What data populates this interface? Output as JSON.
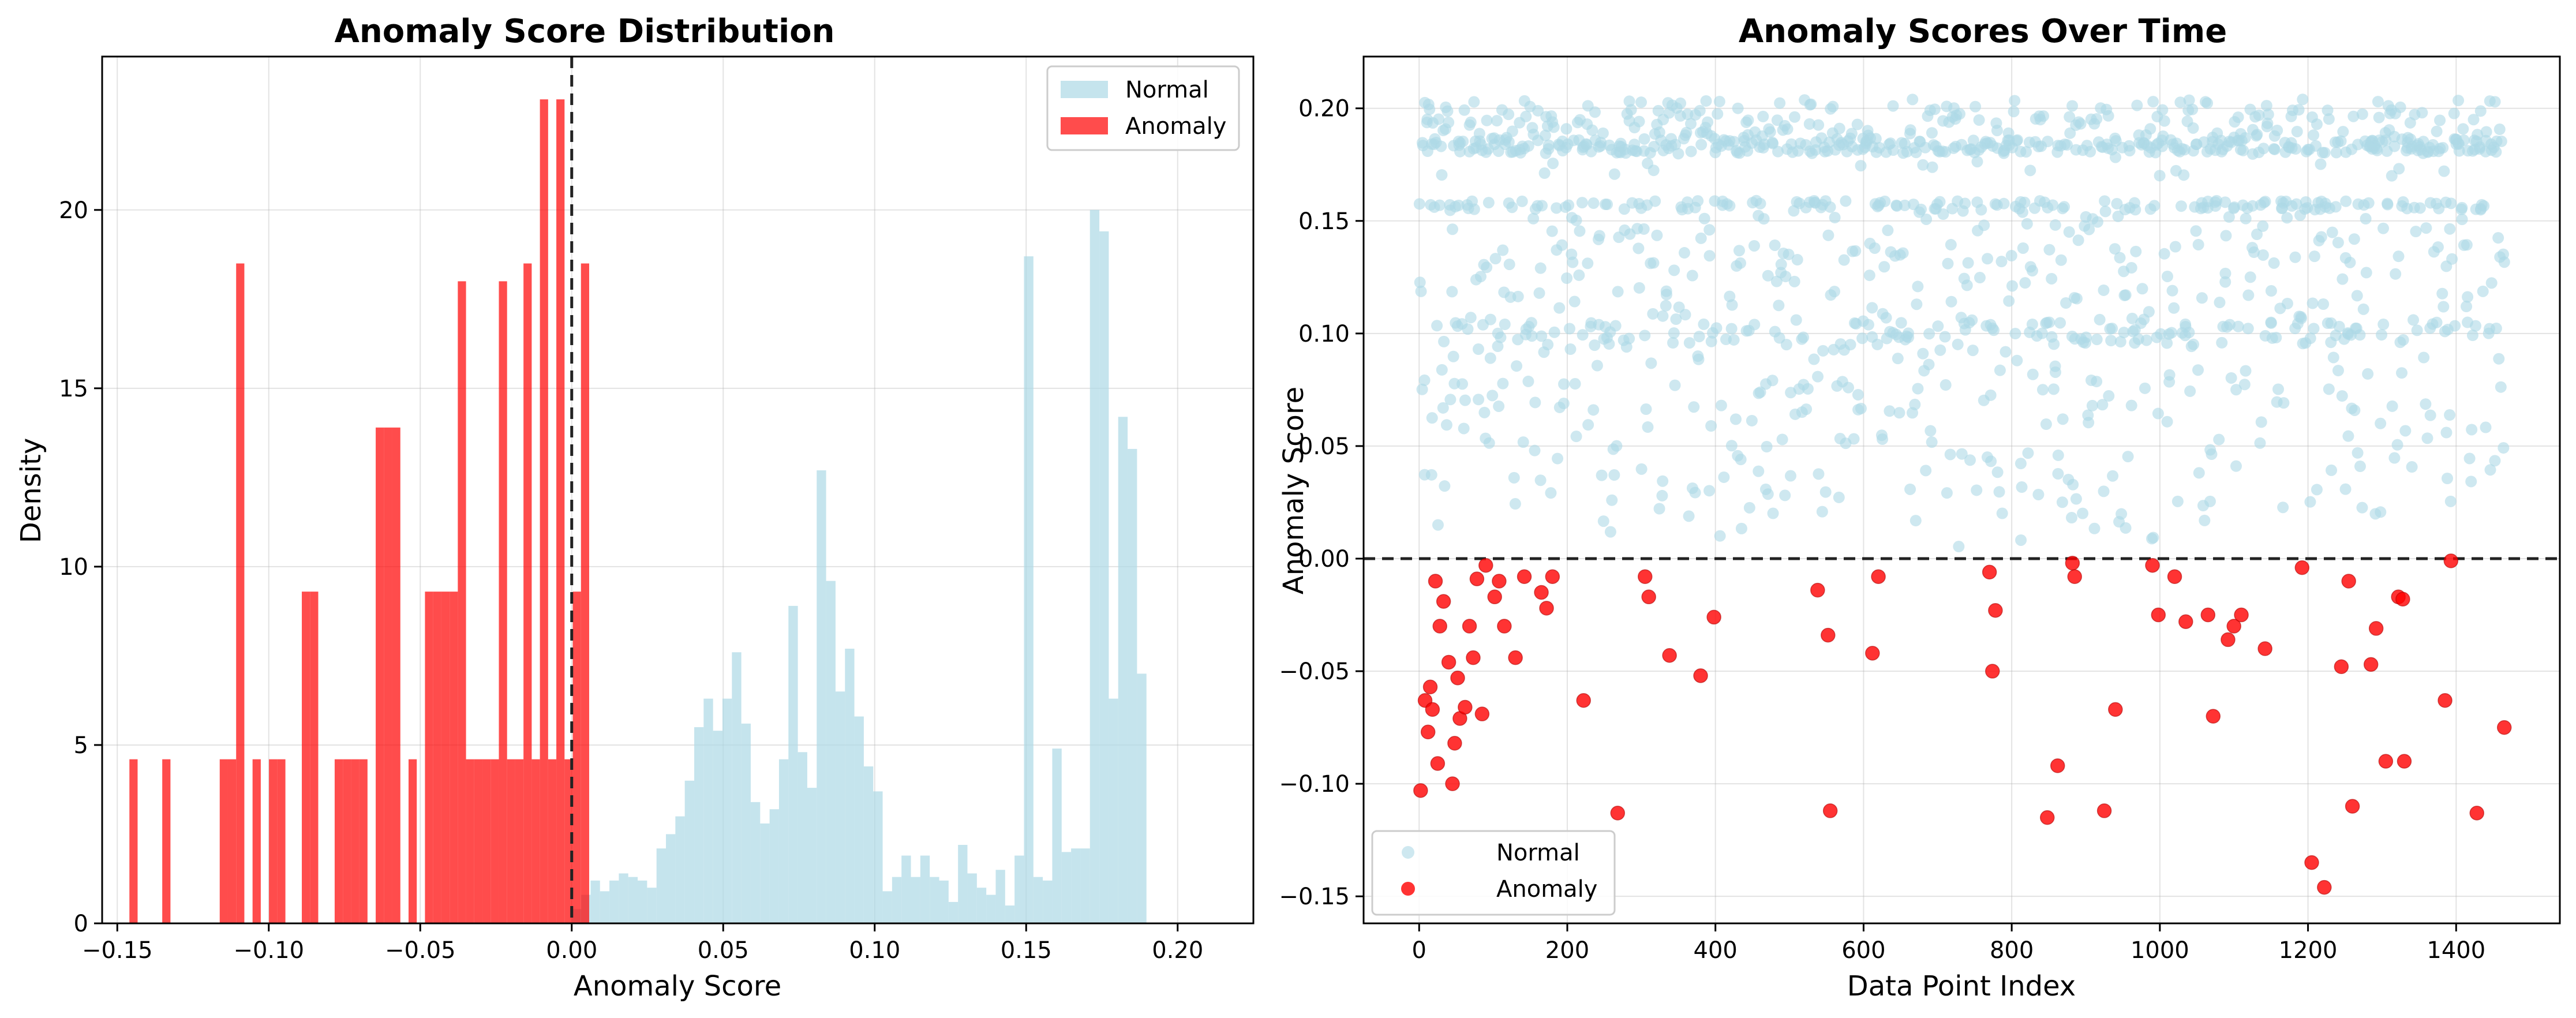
{
  "figure": {
    "background": "#ffffff"
  },
  "chart_data": [
    {
      "type": "histogram",
      "title": "Anomaly Score Distribution",
      "xlabel": "Anomaly Score",
      "ylabel": "Density",
      "xlim": [
        -0.155,
        0.225
      ],
      "ylim": [
        0,
        24.3
      ],
      "xticks": [
        -0.15,
        -0.1,
        -0.05,
        0.0,
        0.05,
        0.1,
        0.15,
        0.2
      ],
      "xtick_labels": [
        "−0.15",
        "−0.10",
        "−0.05",
        "0.00",
        "0.05",
        "0.10",
        "0.15",
        "0.20"
      ],
      "yticks": [
        0,
        5,
        10,
        15,
        20
      ],
      "ytick_labels": [
        "0",
        "5",
        "10",
        "15",
        "20"
      ],
      "grid": true,
      "legend_position": "top-right",
      "threshold_line": 0.0,
      "series": [
        {
          "name": "Normal",
          "color": "#add8e6",
          "alpha": 0.7,
          "bin_start": 0.0,
          "bin_width": 0.00311,
          "densities": [
            0.4,
            0.8,
            1.2,
            0.9,
            1.2,
            1.4,
            1.3,
            1.2,
            1.0,
            2.1,
            2.5,
            3.0,
            4.0,
            5.5,
            6.3,
            5.4,
            6.3,
            7.6,
            5.6,
            3.4,
            2.8,
            3.2,
            4.6,
            8.9,
            4.8,
            3.8,
            12.7,
            9.6,
            6.5,
            7.7,
            5.8,
            4.4,
            3.7,
            0.9,
            1.3,
            1.9,
            1.3,
            1.9,
            1.3,
            1.2,
            0.6,
            2.2,
            1.4,
            1.0,
            0.8,
            1.5,
            0.5,
            1.9,
            18.7,
            1.3,
            1.2,
            4.9,
            2.0,
            2.1,
            2.1,
            20.0,
            19.4,
            6.3,
            14.2,
            13.3,
            7.0
          ]
        },
        {
          "name": "Anomaly",
          "color": "#ff0000",
          "alpha": 0.7,
          "bin_start": -0.146,
          "bin_width": 0.00271,
          "densities": [
            4.6,
            0,
            0,
            0,
            4.6,
            0,
            0,
            0,
            0,
            0,
            0,
            4.6,
            4.6,
            18.5,
            0,
            4.6,
            0,
            4.6,
            4.6,
            0,
            0,
            9.3,
            9.3,
            0,
            0,
            4.6,
            4.6,
            4.6,
            4.6,
            0,
            13.9,
            13.9,
            13.9,
            0,
            4.6,
            0,
            9.3,
            9.3,
            9.3,
            9.3,
            18.0,
            4.6,
            4.6,
            4.6,
            4.6,
            18.0,
            4.6,
            4.6,
            18.5,
            4.6,
            23.1,
            4.6,
            23.1,
            4.6,
            9.3,
            18.5
          ]
        }
      ]
    },
    {
      "type": "scatter",
      "title": "Anomaly Scores Over Time",
      "xlabel": "Data Point Index",
      "ylabel": "Anomaly Score",
      "xlim": [
        -75,
        1540
      ],
      "ylim": [
        -0.162,
        0.223
      ],
      "xticks": [
        0,
        200,
        400,
        600,
        800,
        1000,
        1200,
        1400
      ],
      "xtick_labels": [
        "0",
        "200",
        "400",
        "600",
        "800",
        "1000",
        "1200",
        "1400"
      ],
      "yticks": [
        -0.15,
        -0.1,
        -0.05,
        0.0,
        0.05,
        0.1,
        0.15,
        0.2
      ],
      "ytick_labels": [
        "−0.15",
        "−0.10",
        "−0.05",
        "0.00",
        "0.05",
        "0.10",
        "0.15",
        "0.20"
      ],
      "grid": true,
      "legend_position": "bottom-left",
      "threshold_line": 0.0,
      "series": [
        {
          "name": "Normal",
          "color": "#add8e6",
          "alpha": 0.6,
          "count": 1400,
          "x_range": [
            0,
            1465
          ],
          "y_range": [
            0.0,
            0.205
          ],
          "dense_bands": [
            0.157,
            0.183,
            0.195
          ]
        },
        {
          "name": "Anomaly",
          "color": "#ff0000",
          "alpha": 0.8,
          "points": [
            [
              2,
              -0.103
            ],
            [
              8,
              -0.063
            ],
            [
              12,
              -0.077
            ],
            [
              15,
              -0.057
            ],
            [
              18,
              -0.067
            ],
            [
              22,
              -0.01
            ],
            [
              25,
              -0.091
            ],
            [
              28,
              -0.03
            ],
            [
              33,
              -0.019
            ],
            [
              40,
              -0.046
            ],
            [
              45,
              -0.1
            ],
            [
              48,
              -0.082
            ],
            [
              52,
              -0.053
            ],
            [
              55,
              -0.071
            ],
            [
              62,
              -0.066
            ],
            [
              68,
              -0.03
            ],
            [
              73,
              -0.044
            ],
            [
              78,
              -0.009
            ],
            [
              85,
              -0.069
            ],
            [
              90,
              -0.003
            ],
            [
              102,
              -0.017
            ],
            [
              108,
              -0.01
            ],
            [
              115,
              -0.03
            ],
            [
              130,
              -0.044
            ],
            [
              142,
              -0.008
            ],
            [
              165,
              -0.015
            ],
            [
              172,
              -0.022
            ],
            [
              180,
              -0.008
            ],
            [
              222,
              -0.063
            ],
            [
              268,
              -0.113
            ],
            [
              305,
              -0.008
            ],
            [
              310,
              -0.017
            ],
            [
              338,
              -0.043
            ],
            [
              380,
              -0.052
            ],
            [
              398,
              -0.026
            ],
            [
              538,
              -0.014
            ],
            [
              552,
              -0.034
            ],
            [
              555,
              -0.112
            ],
            [
              612,
              -0.042
            ],
            [
              620,
              -0.008
            ],
            [
              770,
              -0.006
            ],
            [
              774,
              -0.05
            ],
            [
              778,
              -0.023
            ],
            [
              848,
              -0.115
            ],
            [
              862,
              -0.092
            ],
            [
              882,
              -0.002
            ],
            [
              885,
              -0.008
            ],
            [
              925,
              -0.112
            ],
            [
              940,
              -0.067
            ],
            [
              990,
              -0.003
            ],
            [
              998,
              -0.025
            ],
            [
              1020,
              -0.008
            ],
            [
              1035,
              -0.028
            ],
            [
              1065,
              -0.025
            ],
            [
              1072,
              -0.07
            ],
            [
              1092,
              -0.036
            ],
            [
              1100,
              -0.03
            ],
            [
              1110,
              -0.025
            ],
            [
              1142,
              -0.04
            ],
            [
              1192,
              -0.004
            ],
            [
              1205,
              -0.135
            ],
            [
              1222,
              -0.146
            ],
            [
              1245,
              -0.048
            ],
            [
              1255,
              -0.01
            ],
            [
              1260,
              -0.11
            ],
            [
              1285,
              -0.047
            ],
            [
              1292,
              -0.031
            ],
            [
              1305,
              -0.09
            ],
            [
              1322,
              -0.017
            ],
            [
              1330,
              -0.09
            ],
            [
              1328,
              -0.018
            ],
            [
              1385,
              -0.063
            ],
            [
              1393,
              -0.001
            ],
            [
              1428,
              -0.113
            ],
            [
              1465,
              -0.075
            ]
          ]
        }
      ]
    }
  ]
}
